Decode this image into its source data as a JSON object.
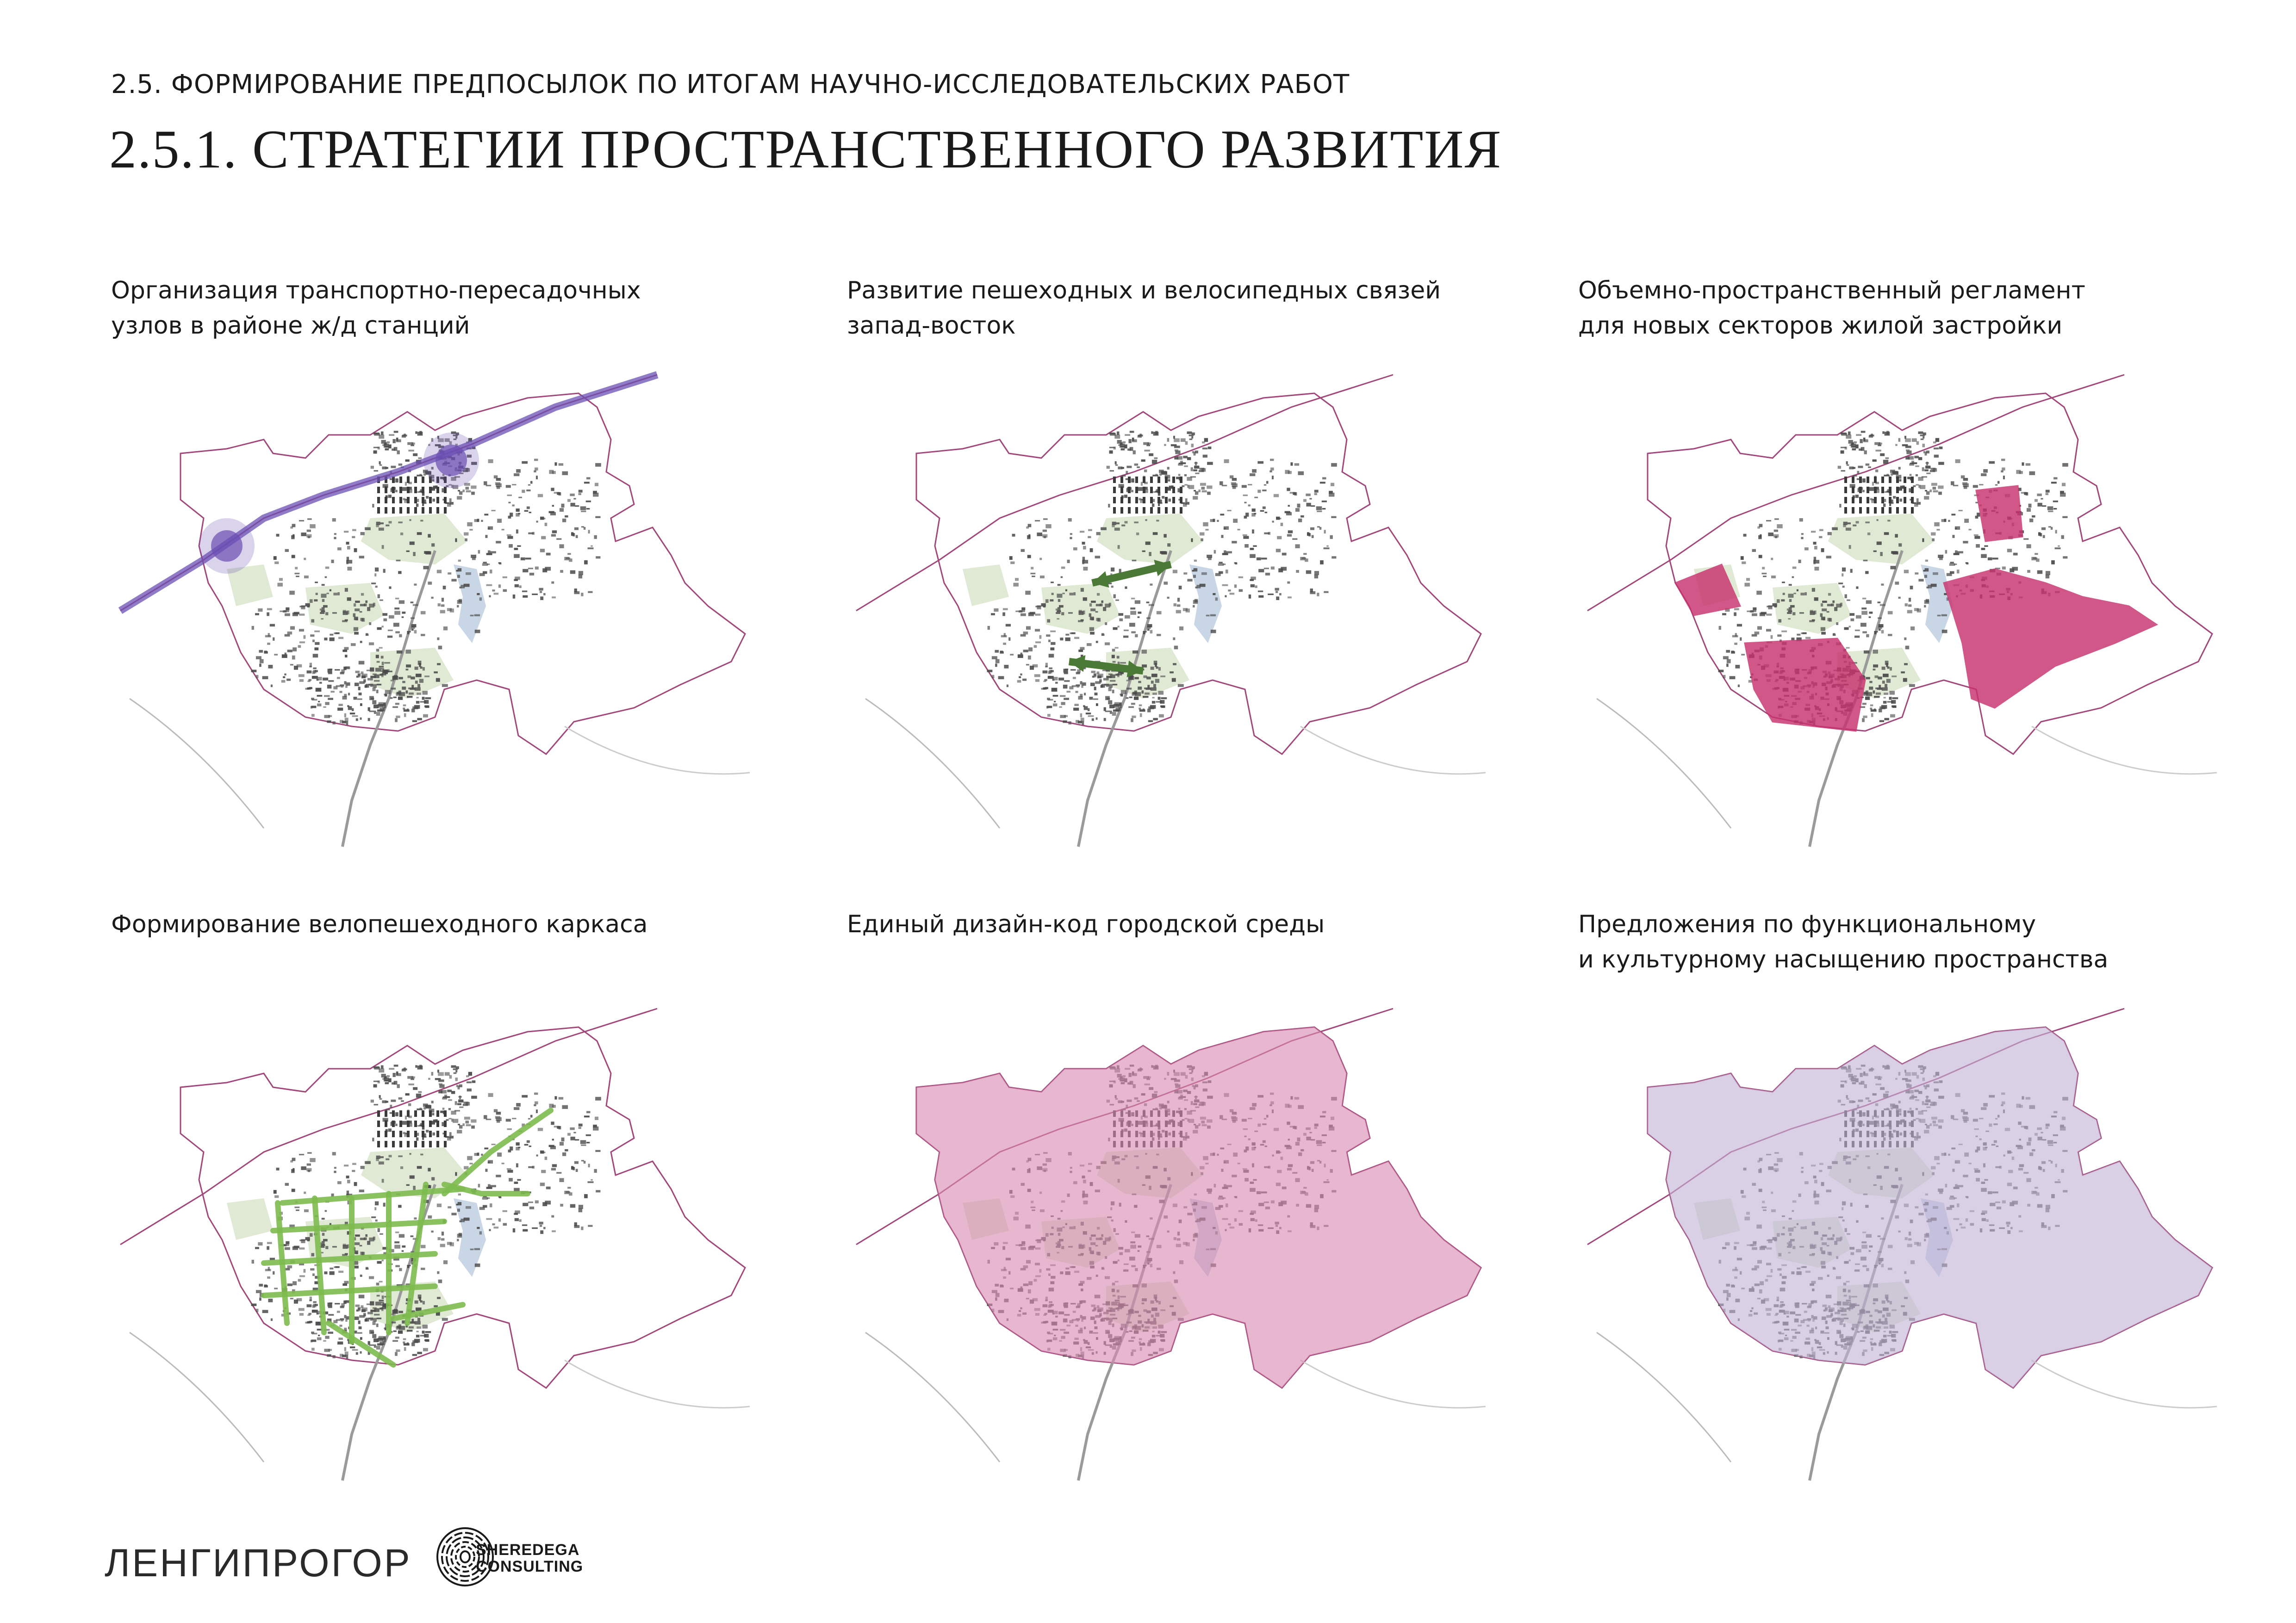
{
  "header": {
    "subtitle": "2.5. ФОРМИРОВАНИЕ ПРЕДПОСЫЛОК ПО ИТОГАМ НАУЧНО-ИССЛЕДОВАТЕЛЬСКИХ РАБОТ",
    "title": "2.5.1. СТРАТЕГИИ ПРОСТРАНСТВЕННОГО РАЗВИТИЯ"
  },
  "panels": [
    {
      "id": "transport-hubs",
      "caption": [
        "Организация транспортно-пересадочных",
        "узлов в районе ж/д станций"
      ],
      "overlay": "transport",
      "accent": "#6b4fb3"
    },
    {
      "id": "ped-bike-links",
      "caption": [
        "Развитие пешеходных и велосипедных связей",
        "запад-восток"
      ],
      "overlay": "arrows",
      "accent": "#4a7a35"
    },
    {
      "id": "volume-regulation",
      "caption": [
        "Объемно-пространственный регламент",
        "для новых секторов жилой застройки"
      ],
      "overlay": "sectors",
      "accent": "#c8336f"
    },
    {
      "id": "bike-ped-framework",
      "caption": [
        "Формирование велопешеходного каркаса"
      ],
      "overlay": "network",
      "accent": "#7dbb4f"
    },
    {
      "id": "design-code",
      "caption": [
        "Единый дизайн-код городской среды"
      ],
      "overlay": "fill-pink",
      "accent": "#d98ab1"
    },
    {
      "id": "cultural-saturation",
      "caption": [
        "Предложения по функциональному",
        "и культурному насыщению пространства"
      ],
      "overlay": "fill-lilac",
      "accent": "#c2b3d6"
    }
  ],
  "colors": {
    "boundary": "#a2477a",
    "railway": "#9a9a9a",
    "greenery": "#dfe9d3",
    "water": "#c9d6e6",
    "buildings": "#4a4a4a"
  },
  "footer": {
    "logo_left": "ЛЕНГИПРОГОР",
    "logo_right_line1": "SHEREDEGA",
    "logo_right_line2": "CONSULTING",
    "logo_right_icon": "fingerprint-icon"
  }
}
